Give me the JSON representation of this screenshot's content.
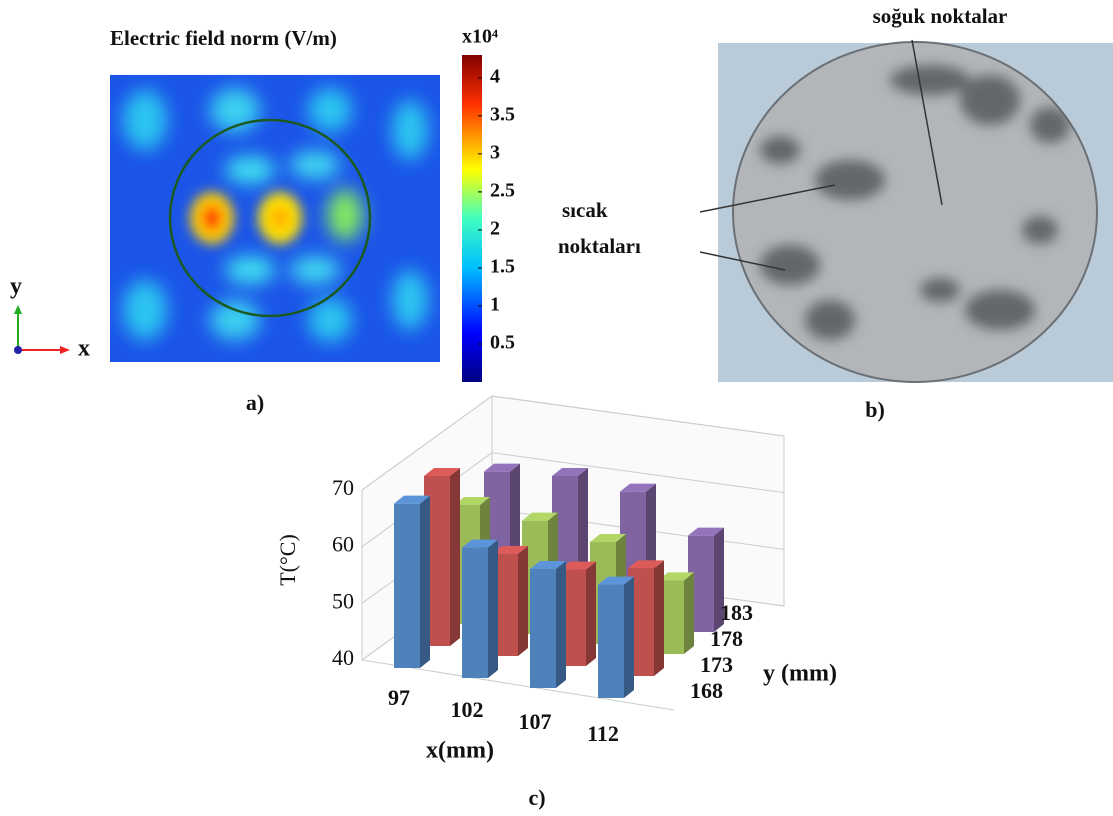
{
  "chart_data": [
    {
      "type": "heatmap",
      "title": "Electric field norm (V/m)",
      "colorbar_label": "x10⁴",
      "clim": [
        0,
        4.3
      ],
      "cticks": [
        0.5,
        1,
        1.5,
        2,
        2.5,
        3,
        3.5,
        4
      ],
      "x_label": "x",
      "y_label": "y",
      "caption": "a)"
    },
    {
      "type": "image",
      "annotations": [
        "soğuk noktalar",
        "sıcak",
        "noktaları"
      ],
      "caption": "b)"
    },
    {
      "type": "bar3d",
      "categories": [
        97,
        102,
        107,
        112
      ],
      "series": [
        {
          "name": "168",
          "color": "#4f81bd",
          "values": [
            69,
            63,
            61,
            60
          ]
        },
        {
          "name": "173",
          "color": "#c0504d",
          "values": [
            70,
            58,
            57,
            59
          ]
        },
        {
          "name": "178",
          "color": "#9bbb59",
          "values": [
            61,
            60,
            58,
            53
          ]
        },
        {
          "name": "183",
          "color": "#8064a2",
          "values": [
            63,
            64,
            63,
            57
          ]
        }
      ],
      "zlim": [
        40,
        70
      ],
      "zticks": [
        40,
        50,
        60,
        70
      ],
      "z_label": "T(°C)",
      "x_label": "x(mm)",
      "y_label": "y (mm)",
      "caption": "c)",
      "grid": true
    }
  ]
}
